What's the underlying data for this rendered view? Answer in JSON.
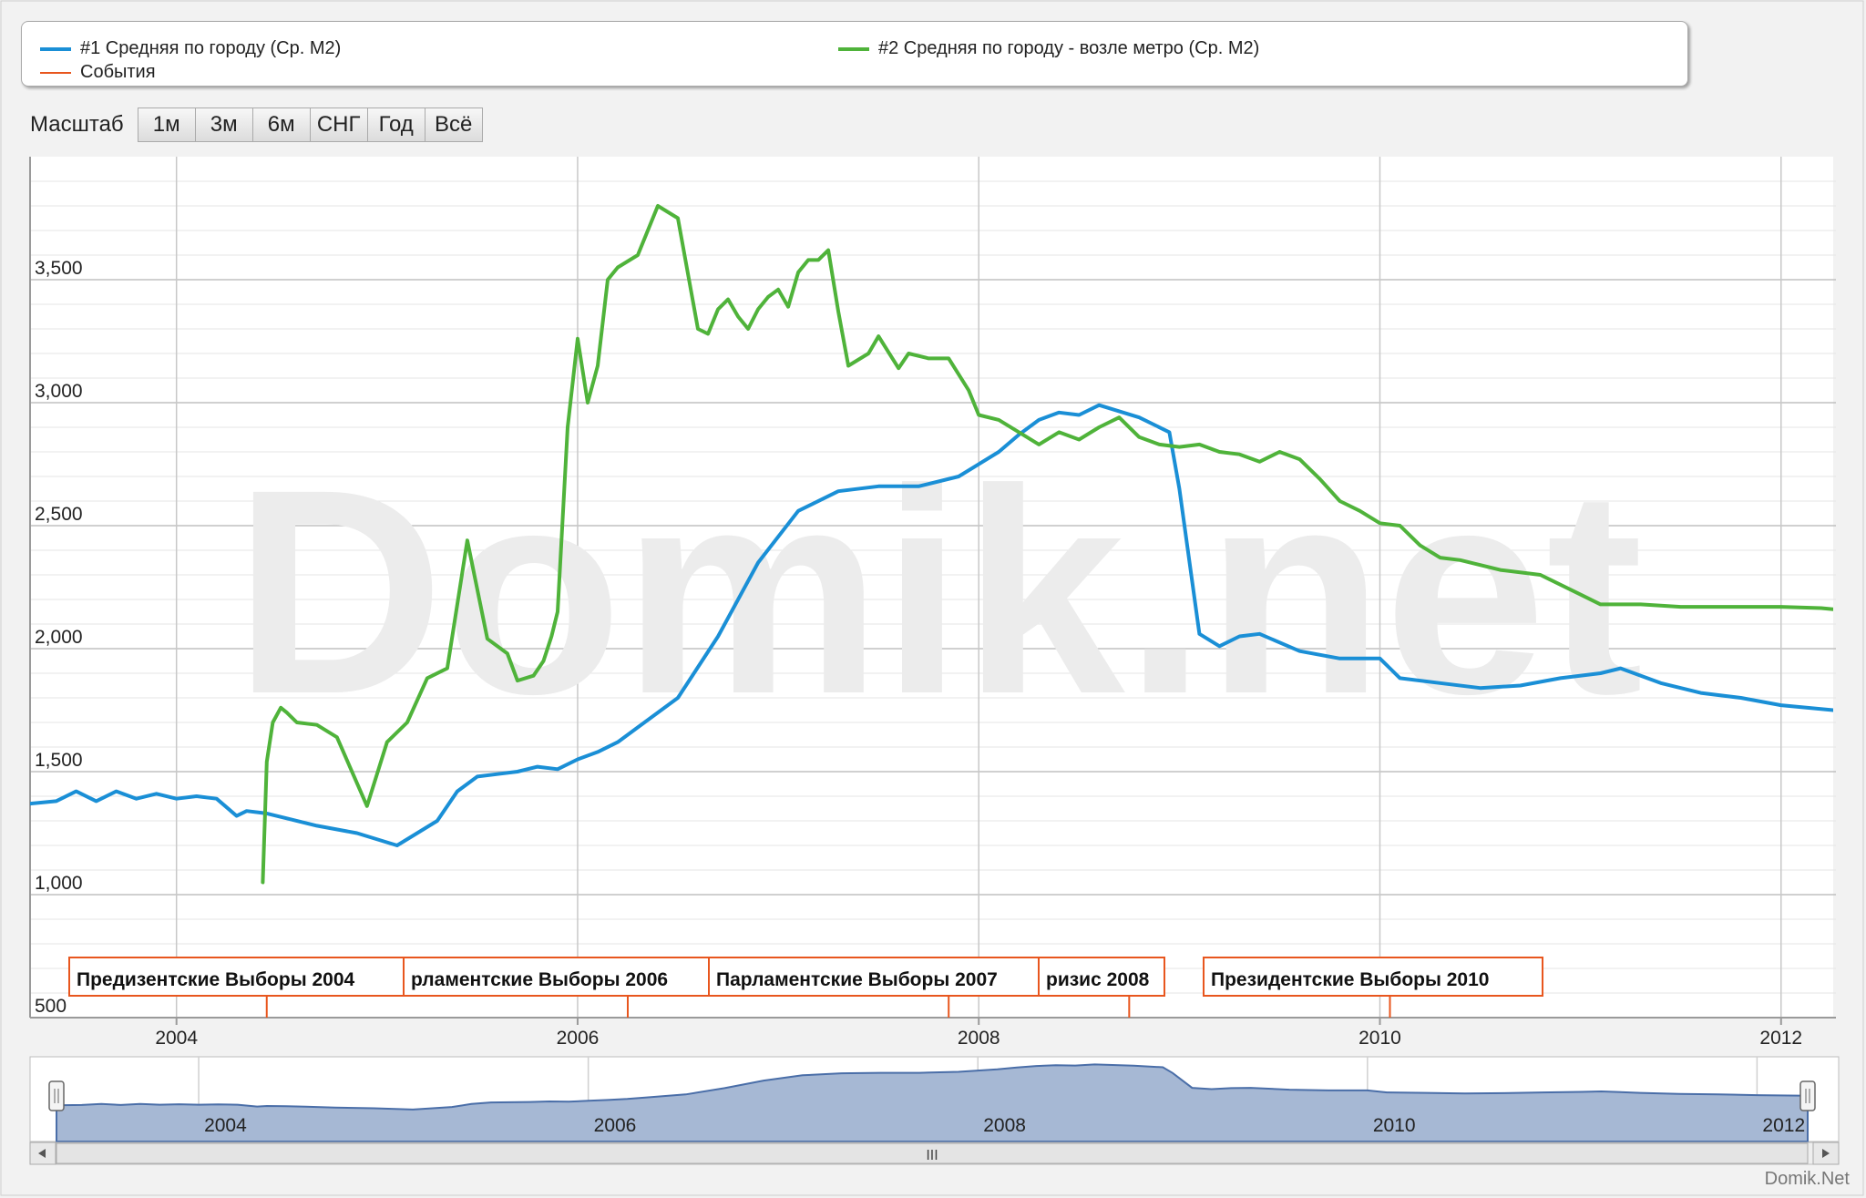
{
  "legend": {
    "series1": "#1 Средняя по городу (Ср. М2)",
    "series2": "#2 Средняя по городу - возле метро (Ср. М2)",
    "events": "События"
  },
  "zoom": {
    "label": "Масштаб",
    "buttons": [
      "1м",
      "3м",
      "6м",
      "СНГ",
      "Год",
      "Всё"
    ]
  },
  "watermark": "Domik.net",
  "credit": "Domik.Net",
  "navigator": {
    "scrollbar_grip": "III"
  },
  "colors": {
    "series1": "#1a8fd6",
    "series2": "#4fb33a",
    "events": "#e8561e",
    "navigator_fill": "#a6b8d4",
    "navigator_line": "#4a6ea8"
  },
  "chart_data": {
    "type": "line",
    "title": "",
    "xlabel": "",
    "ylabel": "",
    "xlim": [
      2003.27,
      2012.26
    ],
    "ylim": [
      500,
      4000
    ],
    "yticks": [
      500,
      1000,
      1500,
      2000,
      2500,
      3000,
      3500
    ],
    "ytick_labels": [
      "500",
      "1,000",
      "1,500",
      "2,000",
      "2,500",
      "3,000",
      "3,500"
    ],
    "xticks": [
      2004,
      2006,
      2008,
      2010,
      2012
    ],
    "grid": true,
    "legend_position": "top",
    "series": [
      {
        "name": "#1 Средняя по городу (Ср. М2)",
        "x": [
          2003.27,
          2003.4,
          2003.5,
          2003.6,
          2003.7,
          2003.8,
          2003.9,
          2004.0,
          2004.1,
          2004.2,
          2004.3,
          2004.35,
          2004.45,
          2004.55,
          2004.7,
          2004.9,
          2005.1,
          2005.3,
          2005.4,
          2005.5,
          2005.6,
          2005.7,
          2005.8,
          2005.9,
          2006.0,
          2006.1,
          2006.2,
          2006.3,
          2006.5,
          2006.7,
          2006.9,
          2007.1,
          2007.3,
          2007.5,
          2007.7,
          2007.9,
          2008.1,
          2008.2,
          2008.3,
          2008.4,
          2008.5,
          2008.6,
          2008.8,
          2008.95,
          2009.0,
          2009.1,
          2009.2,
          2009.3,
          2009.4,
          2009.6,
          2009.8,
          2010.0,
          2010.1,
          2010.3,
          2010.5,
          2010.7,
          2010.9,
          2011.1,
          2011.2,
          2011.4,
          2011.6,
          2011.8,
          2012.0,
          2012.26
        ],
        "values": [
          1370,
          1380,
          1420,
          1380,
          1420,
          1390,
          1410,
          1390,
          1400,
          1390,
          1320,
          1340,
          1330,
          1310,
          1280,
          1250,
          1200,
          1300,
          1420,
          1480,
          1490,
          1500,
          1520,
          1510,
          1550,
          1580,
          1620,
          1680,
          1800,
          2050,
          2350,
          2560,
          2640,
          2660,
          2660,
          2700,
          2800,
          2870,
          2930,
          2960,
          2950,
          2990,
          2940,
          2880,
          2650,
          2060,
          2010,
          2050,
          2060,
          1990,
          1960,
          1960,
          1880,
          1860,
          1840,
          1850,
          1880,
          1900,
          1920,
          1860,
          1820,
          1800,
          1770,
          1750
        ]
      },
      {
        "name": "#2 Средняя по городу - возле метро (Ср. М2)",
        "x": [
          2004.43,
          2004.45,
          2004.48,
          2004.52,
          2004.55,
          2004.6,
          2004.7,
          2004.8,
          2004.95,
          2005.05,
          2005.15,
          2005.25,
          2005.35,
          2005.45,
          2005.55,
          2005.65,
          2005.7,
          2005.78,
          2005.83,
          2005.87,
          2005.9,
          2005.95,
          2006.0,
          2006.05,
          2006.1,
          2006.15,
          2006.2,
          2006.3,
          2006.4,
          2006.5,
          2006.6,
          2006.65,
          2006.7,
          2006.75,
          2006.8,
          2006.85,
          2006.9,
          2006.95,
          2007.0,
          2007.05,
          2007.1,
          2007.15,
          2007.2,
          2007.25,
          2007.3,
          2007.35,
          2007.45,
          2007.5,
          2007.6,
          2007.65,
          2007.75,
          2007.85,
          2007.95,
          2008.0,
          2008.1,
          2008.2,
          2008.3,
          2008.4,
          2008.5,
          2008.6,
          2008.7,
          2008.8,
          2008.9,
          2009.0,
          2009.1,
          2009.2,
          2009.3,
          2009.4,
          2009.5,
          2009.6,
          2009.7,
          2009.8,
          2009.9,
          2010.0,
          2010.1,
          2010.2,
          2010.3,
          2010.4,
          2010.5,
          2010.6,
          2010.8,
          2011.0,
          2011.1,
          2011.3,
          2011.5,
          2011.7,
          2011.9,
          2012.0,
          2012.2,
          2012.26
        ],
        "values": [
          1050,
          1540,
          1700,
          1760,
          1740,
          1700,
          1690,
          1640,
          1360,
          1620,
          1700,
          1880,
          1920,
          2440,
          2040,
          1980,
          1870,
          1890,
          1950,
          2050,
          2150,
          2900,
          3260,
          3000,
          3150,
          3500,
          3550,
          3600,
          3800,
          3750,
          3300,
          3280,
          3380,
          3420,
          3350,
          3300,
          3380,
          3430,
          3460,
          3390,
          3530,
          3580,
          3580,
          3620,
          3370,
          3150,
          3200,
          3270,
          3140,
          3200,
          3180,
          3180,
          3050,
          2950,
          2930,
          2880,
          2830,
          2880,
          2850,
          2900,
          2940,
          2860,
          2830,
          2820,
          2830,
          2800,
          2790,
          2760,
          2800,
          2770,
          2690,
          2600,
          2560,
          2510,
          2500,
          2420,
          2370,
          2360,
          2340,
          2320,
          2300,
          2220,
          2180,
          2180,
          2170,
          2170,
          2170,
          2170,
          2165,
          2160
        ]
      }
    ],
    "events": [
      {
        "label": "Предизентские Выборы 2004",
        "x": 2004.45
      },
      {
        "label": "рламентские Выборы 2006",
        "x": 2006.25
      },
      {
        "label": "Парламентские Выборы 2007",
        "x": 2007.85
      },
      {
        "label": "ризис 2008",
        "x": 2008.75
      },
      {
        "label": "Президентские Выборы 2010",
        "x": 2010.05
      }
    ]
  }
}
